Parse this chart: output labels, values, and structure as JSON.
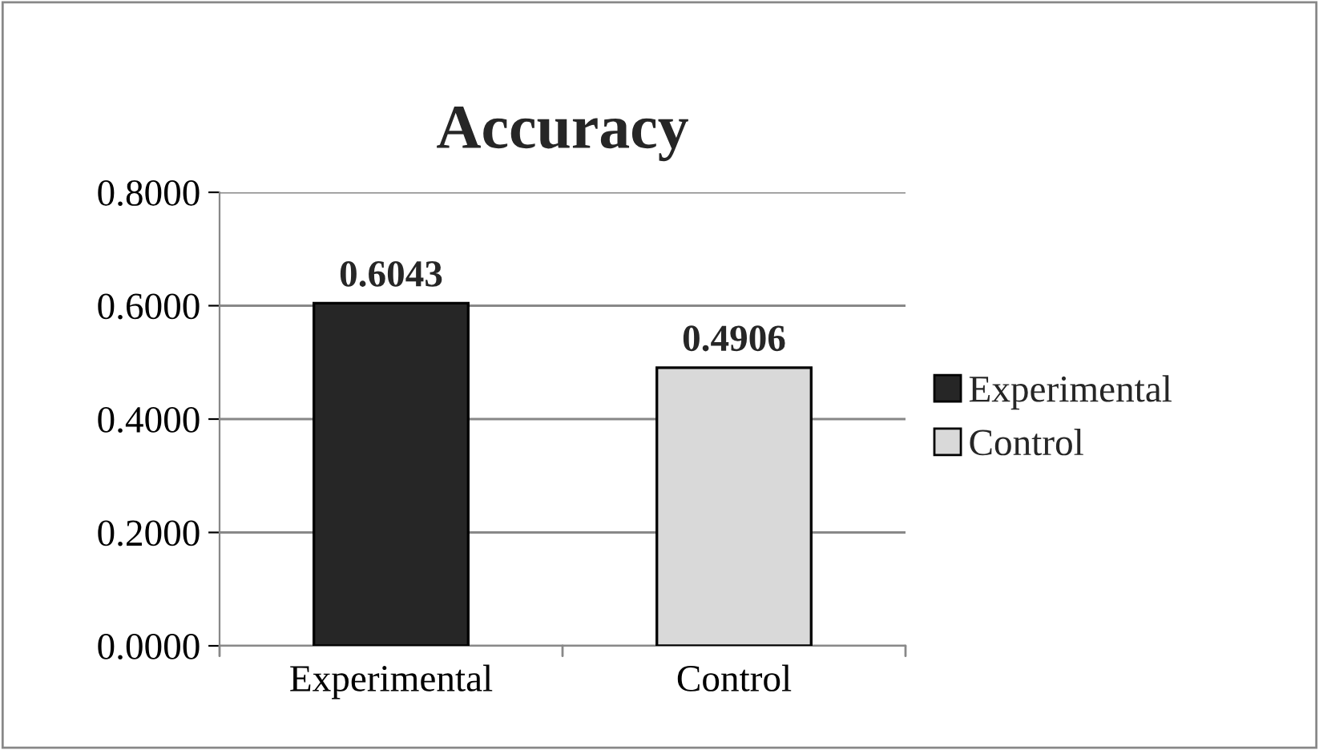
{
  "chart_data": {
    "type": "bar",
    "title": "Accuracy",
    "categories": [
      "Experimental",
      "Control"
    ],
    "series": [
      {
        "name": "Experimental",
        "color": "#262626",
        "values": [
          0.6043,
          null
        ]
      },
      {
        "name": "Control",
        "color": "#d9d9d9",
        "values": [
          null,
          0.4906
        ]
      }
    ],
    "ylim": [
      0,
      0.8
    ],
    "yticks": [
      {
        "value": 0,
        "label": "0.0000"
      },
      {
        "value": 0.2,
        "label": "0.2000"
      },
      {
        "value": 0.4,
        "label": "0.4000"
      },
      {
        "value": 0.6,
        "label": "0.6000"
      },
      {
        "value": 0.8,
        "label": "0.8000"
      }
    ],
    "grid": "y",
    "legend": "right",
    "data_labels": true
  }
}
